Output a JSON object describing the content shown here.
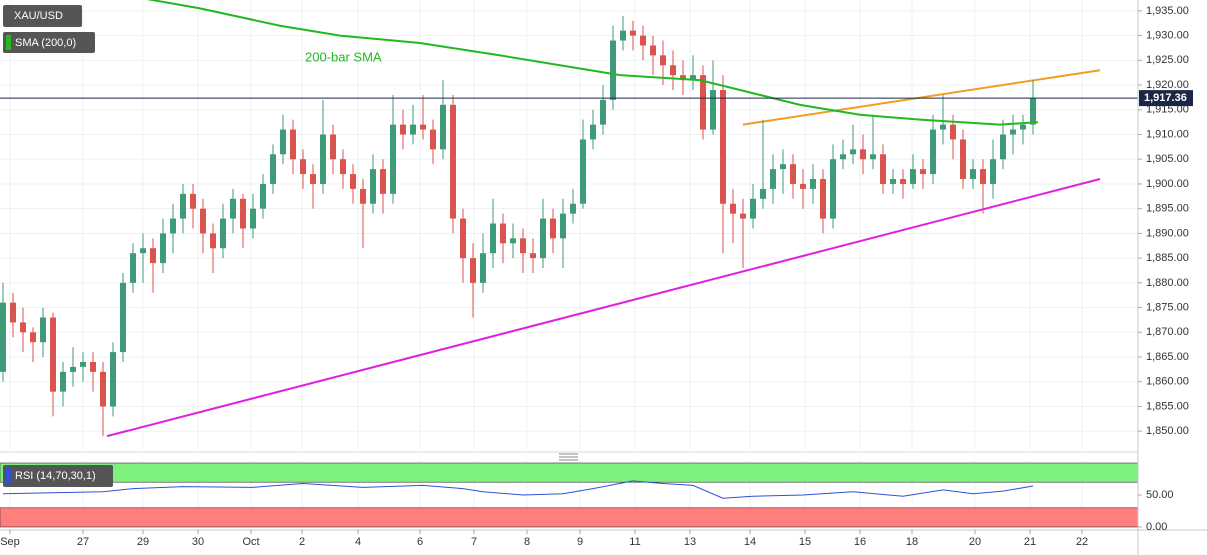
{
  "chart_data": {
    "type": "candlestick",
    "title": "XAU/USD",
    "up_color": "#3f9a78",
    "down_color": "#d9534f",
    "grid": true,
    "xlim": [
      -0.3,
      113.5
    ],
    "ylim": [
      1846.2,
      1937.2
    ],
    "xticks": [
      {
        "value": 0.7,
        "label": "Sep"
      },
      {
        "value": 8.0,
        "label": "27"
      },
      {
        "value": 14.0,
        "label": "29"
      },
      {
        "value": 19.5,
        "label": "30"
      },
      {
        "value": 24.8,
        "label": "Oct"
      },
      {
        "value": 29.9,
        "label": "2"
      },
      {
        "value": 35.5,
        "label": "4"
      },
      {
        "value": 41.7,
        "label": "6"
      },
      {
        "value": 47.1,
        "label": "7"
      },
      {
        "value": 52.4,
        "label": "8"
      },
      {
        "value": 57.7,
        "label": "9"
      },
      {
        "value": 63.2,
        "label": "11"
      },
      {
        "value": 68.7,
        "label": "13"
      },
      {
        "value": 74.7,
        "label": "14"
      },
      {
        "value": 80.2,
        "label": "15"
      },
      {
        "value": 85.7,
        "label": "16"
      },
      {
        "value": 90.9,
        "label": "18"
      },
      {
        "value": 97.2,
        "label": "20"
      },
      {
        "value": 102.7,
        "label": "21"
      },
      {
        "value": 107.9,
        "label": "22"
      }
    ],
    "yticks": [
      {
        "value": 1850,
        "label": "1,850.00"
      },
      {
        "value": 1855,
        "label": "1,855.00"
      },
      {
        "value": 1860,
        "label": "1,860.00"
      },
      {
        "value": 1865,
        "label": "1,865.00"
      },
      {
        "value": 1870,
        "label": "1,870.00"
      },
      {
        "value": 1875,
        "label": "1,875.00"
      },
      {
        "value": 1880,
        "label": "1,880.00"
      },
      {
        "value": 1885,
        "label": "1,885.00"
      },
      {
        "value": 1890,
        "label": "1,890.00"
      },
      {
        "value": 1895,
        "label": "1,895.00"
      },
      {
        "value": 1900,
        "label": "1,900.00"
      },
      {
        "value": 1905,
        "label": "1,905.00"
      },
      {
        "value": 1910,
        "label": "1,910.00"
      },
      {
        "value": 1915,
        "label": "1,915.00"
      },
      {
        "value": 1920,
        "label": "1,920.00"
      },
      {
        "value": 1925,
        "label": "1,925.00"
      },
      {
        "value": 1930,
        "label": "1,930.00"
      },
      {
        "value": 1935,
        "label": "1,935.00"
      }
    ],
    "last_price": {
      "value": 1917.36,
      "label": "1,917.36"
    },
    "last_price_color": "#1c2746",
    "candles": [
      [
        1862,
        1880,
        1860,
        1876
      ],
      [
        1876,
        1878,
        1869,
        1872
      ],
      [
        1872,
        1875,
        1866,
        1870
      ],
      [
        1870,
        1871,
        1864,
        1868
      ],
      [
        1868,
        1875,
        1865,
        1873
      ],
      [
        1873,
        1874,
        1853,
        1858
      ],
      [
        1858,
        1864,
        1855,
        1862
      ],
      [
        1862,
        1867,
        1859,
        1863
      ],
      [
        1863,
        1866,
        1860,
        1864
      ],
      [
        1864,
        1866,
        1858,
        1862
      ],
      [
        1862,
        1864,
        1849,
        1855
      ],
      [
        1855,
        1868,
        1853,
        1866
      ],
      [
        1866,
        1882,
        1864,
        1880
      ],
      [
        1880,
        1888,
        1878,
        1886
      ],
      [
        1886,
        1890,
        1880,
        1887
      ],
      [
        1887,
        1889,
        1878,
        1884
      ],
      [
        1884,
        1893,
        1882,
        1890
      ],
      [
        1890,
        1896,
        1886,
        1893
      ],
      [
        1893,
        1900,
        1890,
        1898
      ],
      [
        1898,
        1900,
        1891,
        1895
      ],
      [
        1895,
        1897,
        1886,
        1890
      ],
      [
        1890,
        1892,
        1882,
        1887
      ],
      [
        1887,
        1896,
        1885,
        1893
      ],
      [
        1893,
        1899,
        1890,
        1897
      ],
      [
        1897,
        1898,
        1887,
        1891
      ],
      [
        1891,
        1898,
        1889,
        1895
      ],
      [
        1895,
        1902,
        1893,
        1900
      ],
      [
        1900,
        1908,
        1898,
        1906
      ],
      [
        1906,
        1914,
        1904,
        1911
      ],
      [
        1911,
        1913,
        1902,
        1905
      ],
      [
        1905,
        1907,
        1899,
        1902
      ],
      [
        1902,
        1904,
        1895,
        1900
      ],
      [
        1900,
        1917,
        1898,
        1910
      ],
      [
        1910,
        1912,
        1902,
        1905
      ],
      [
        1905,
        1907,
        1899,
        1902
      ],
      [
        1902,
        1904,
        1896,
        1899
      ],
      [
        1899,
        1901,
        1887,
        1896
      ],
      [
        1896,
        1906,
        1894,
        1903
      ],
      [
        1903,
        1905,
        1894,
        1898
      ],
      [
        1898,
        1918,
        1896,
        1912
      ],
      [
        1912,
        1915,
        1907,
        1910
      ],
      [
        1910,
        1916,
        1908,
        1912
      ],
      [
        1912,
        1918,
        1909,
        1911
      ],
      [
        1911,
        1913,
        1904,
        1907
      ],
      [
        1907,
        1921,
        1905,
        1916
      ],
      [
        1916,
        1918,
        1890,
        1893
      ],
      [
        1893,
        1895,
        1880,
        1885
      ],
      [
        1885,
        1888,
        1873,
        1880
      ],
      [
        1880,
        1890,
        1878,
        1886
      ],
      [
        1886,
        1897,
        1883,
        1892
      ],
      [
        1892,
        1894,
        1884,
        1888
      ],
      [
        1888,
        1892,
        1885,
        1889
      ],
      [
        1889,
        1891,
        1882,
        1886
      ],
      [
        1886,
        1889,
        1882,
        1885
      ],
      [
        1885,
        1897,
        1883,
        1893
      ],
      [
        1893,
        1895,
        1886,
        1889
      ],
      [
        1889,
        1897,
        1883,
        1894
      ],
      [
        1894,
        1899,
        1892,
        1896
      ],
      [
        1896,
        1913,
        1895,
        1909
      ],
      [
        1909,
        1915,
        1907,
        1912
      ],
      [
        1912,
        1920,
        1910,
        1917
      ],
      [
        1917,
        1932,
        1915,
        1929
      ],
      [
        1929,
        1934,
        1927,
        1931
      ],
      [
        1931,
        1933,
        1927,
        1930
      ],
      [
        1930,
        1932,
        1925,
        1928
      ],
      [
        1928,
        1930,
        1922,
        1926
      ],
      [
        1926,
        1929,
        1920,
        1924
      ],
      [
        1924,
        1927,
        1919,
        1922
      ],
      [
        1922,
        1925,
        1918,
        1921
      ],
      [
        1921,
        1926,
        1919,
        1922
      ],
      [
        1922,
        1924,
        1909,
        1911
      ],
      [
        1911,
        1925,
        1910,
        1919
      ],
      [
        1919,
        1922,
        1886,
        1896
      ],
      [
        1896,
        1899,
        1888,
        1894
      ],
      [
        1894,
        1897,
        1883,
        1893
      ],
      [
        1893,
        1900,
        1891,
        1897
      ],
      [
        1897,
        1913,
        1895,
        1899
      ],
      [
        1899,
        1906,
        1896,
        1903
      ],
      [
        1903,
        1907,
        1898,
        1904
      ],
      [
        1904,
        1906,
        1897,
        1900
      ],
      [
        1900,
        1903,
        1895,
        1899
      ],
      [
        1899,
        1904,
        1896,
        1901
      ],
      [
        1901,
        1903,
        1890,
        1893
      ],
      [
        1893,
        1908,
        1891,
        1905
      ],
      [
        1905,
        1909,
        1903,
        1906
      ],
      [
        1906,
        1912,
        1904,
        1907
      ],
      [
        1907,
        1910,
        1902,
        1905
      ],
      [
        1905,
        1914,
        1903,
        1906
      ],
      [
        1906,
        1908,
        1898,
        1900
      ],
      [
        1900,
        1903,
        1898,
        1901
      ],
      [
        1901,
        1903,
        1897,
        1900
      ],
      [
        1900,
        1906,
        1899,
        1903
      ],
      [
        1903,
        1905,
        1899,
        1902
      ],
      [
        1902,
        1914,
        1900,
        1911
      ],
      [
        1911,
        1918,
        1908,
        1912
      ],
      [
        1912,
        1914,
        1905,
        1909
      ],
      [
        1909,
        1911,
        1899,
        1901
      ],
      [
        1901,
        1905,
        1899,
        1903
      ],
      [
        1903,
        1905,
        1894,
        1900
      ],
      [
        1900,
        1909,
        1897,
        1905
      ],
      [
        1905,
        1913,
        1903,
        1910
      ],
      [
        1910,
        1914,
        1906,
        1911
      ],
      [
        1911,
        1914,
        1908,
        1912
      ],
      [
        1912,
        1921,
        1910,
        1917.36
      ]
    ],
    "sma": {
      "name": "SMA (200,0)",
      "color": "#22b822",
      "x": [
        12.7,
        19.7,
        27.7,
        33.7,
        41.7,
        49.7,
        55.7,
        61.7,
        69.7,
        73.7,
        79.7,
        85.7,
        91.7,
        99.7,
        103.5
      ],
      "values": [
        1938,
        1935.5,
        1932,
        1930,
        1928.5,
        1926,
        1924,
        1922,
        1921,
        1919,
        1916,
        1914,
        1913,
        1912,
        1912.5
      ]
    },
    "annotation": "200-bar SMA",
    "trendlines": [
      {
        "color": "#e020e0",
        "x": [
          10.4,
          109.7
        ],
        "y": [
          1849,
          1901
        ]
      },
      {
        "color": "#f39c1f",
        "x": [
          74,
          109.7
        ],
        "y": [
          1912,
          1923
        ]
      }
    ],
    "rsi": {
      "name": "RSI (14,70,30,1)",
      "color": "#3050d8",
      "ylim": [
        -4.7,
        104.7
      ],
      "yticks": [
        {
          "value": 50,
          "label": "50.00"
        },
        {
          "value": 0,
          "label": "0.00"
        }
      ],
      "bands": [
        {
          "range": [
            70,
            100
          ],
          "color": "#7ef07e"
        },
        {
          "range": [
            0,
            30
          ],
          "color": "#ff7f7f"
        }
      ],
      "x": [
        0,
        10,
        13,
        18,
        25,
        30,
        36,
        42,
        46,
        48,
        52,
        56,
        59,
        63,
        66,
        69,
        72,
        75,
        80,
        85,
        90,
        94,
        97,
        100,
        103
      ],
      "values": [
        52,
        55,
        60,
        63,
        62,
        68,
        62,
        65,
        60,
        55,
        50,
        52,
        60,
        72,
        68,
        65,
        45,
        48,
        50,
        55,
        48,
        58,
        52,
        56,
        64
      ]
    }
  }
}
